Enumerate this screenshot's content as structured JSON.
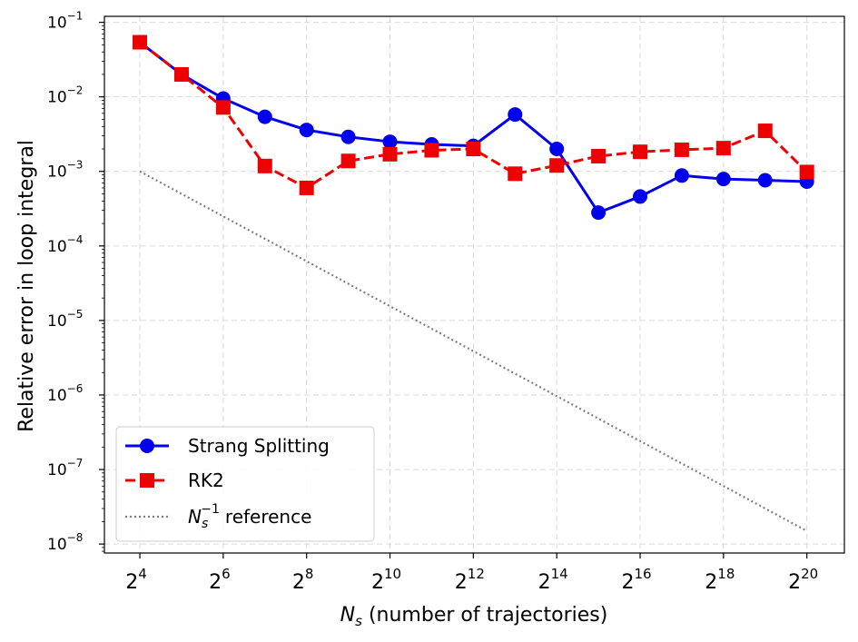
{
  "chart_data": {
    "type": "line",
    "x_scale": "log2",
    "y_scale": "log10",
    "x_exponents": [
      4,
      5,
      6,
      7,
      8,
      9,
      10,
      11,
      12,
      13,
      14,
      15,
      16,
      17,
      18,
      19,
      20
    ],
    "x_tick_exponents": [
      4,
      6,
      8,
      10,
      12,
      14,
      16,
      18,
      20
    ],
    "y_tick_exponents": [
      -8,
      -7,
      -6,
      -5,
      -4,
      -3,
      -2,
      -1
    ],
    "xlim_log2": [
      3.15,
      20.9
    ],
    "ylim_log10": [
      -8.12,
      -0.92
    ],
    "grid": true,
    "xlabel": {
      "symbol": "N",
      "sub": "s",
      "rest": " (number of trajectories)"
    },
    "ylabel": "Relative error in loop integral",
    "legend_position": "lower-left",
    "series": [
      {
        "name": "Strang Splitting",
        "color": "#0000ee",
        "marker": "circle",
        "linestyle": "solid",
        "values": [
          0.054,
          0.02,
          0.0095,
          0.0054,
          0.0036,
          0.0029,
          0.0025,
          0.0023,
          0.0022,
          0.0058,
          0.002,
          0.00028,
          0.00046,
          0.00088,
          0.00079,
          0.00076,
          0.00073
        ]
      },
      {
        "name": "RK2",
        "color": "#ee0000",
        "marker": "square",
        "linestyle": "dashed",
        "values": [
          0.054,
          0.02,
          0.0072,
          0.00118,
          0.0006,
          0.00138,
          0.0017,
          0.00192,
          0.002,
          0.00093,
          0.0012,
          0.0016,
          0.00183,
          0.00195,
          0.00205,
          0.0035,
          0.00098
        ]
      },
      {
        "name": "reference",
        "legend_symbol": "N",
        "legend_sub": "s",
        "legend_sup": "−1",
        "color": "#7f7f7f",
        "marker": "none",
        "linestyle": "dotted",
        "x_exponents": [
          4,
          20
        ],
        "values": [
          0.001,
          1.5e-08
        ]
      }
    ]
  }
}
